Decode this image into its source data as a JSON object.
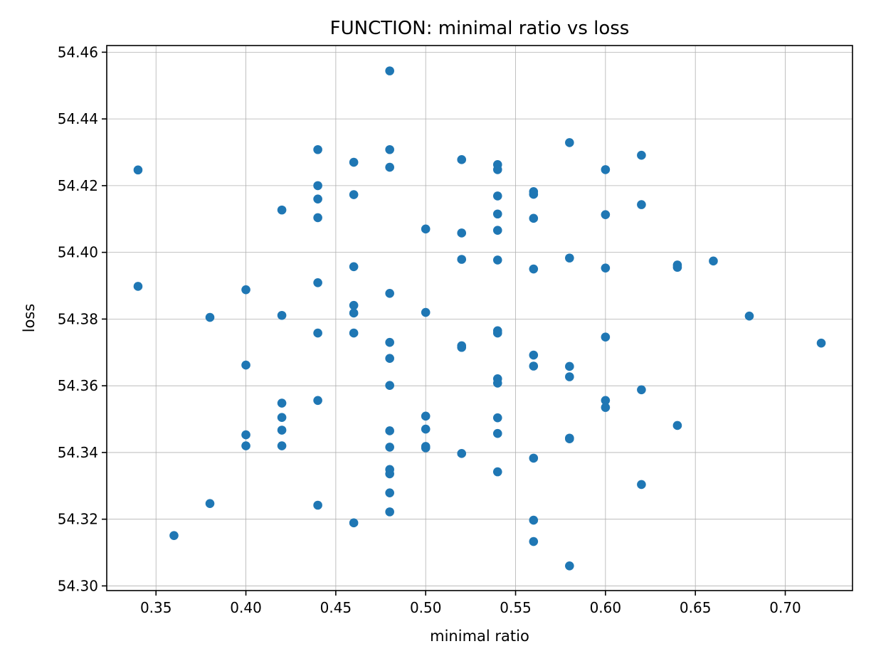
{
  "chart_data": {
    "type": "scatter",
    "title": "FUNCTION: minimal ratio vs loss",
    "xlabel": "minimal ratio",
    "ylabel": "loss",
    "xlim": [
      0.3226,
      0.7374
    ],
    "ylim": [
      54.2986,
      54.462
    ],
    "xticks": [
      "0.35",
      "0.40",
      "0.45",
      "0.50",
      "0.55",
      "0.60",
      "0.65",
      "0.70"
    ],
    "yticks": [
      "54.30",
      "54.32",
      "54.34",
      "54.36",
      "54.38",
      "54.40",
      "54.42",
      "54.44",
      "54.46"
    ],
    "grid": true,
    "marker_color": "#1f77b4",
    "points": [
      [
        0.34,
        54.4247
      ],
      [
        0.34,
        54.3898
      ],
      [
        0.36,
        54.3151
      ],
      [
        0.38,
        54.3805
      ],
      [
        0.38,
        54.3247
      ],
      [
        0.4,
        54.3888
      ],
      [
        0.4,
        54.3662
      ],
      [
        0.4,
        54.3453
      ],
      [
        0.4,
        54.342
      ],
      [
        0.42,
        54.4127
      ],
      [
        0.42,
        54.3811
      ],
      [
        0.42,
        54.3548
      ],
      [
        0.42,
        54.3505
      ],
      [
        0.42,
        54.3467
      ],
      [
        0.42,
        54.342
      ],
      [
        0.44,
        54.4308
      ],
      [
        0.44,
        54.42
      ],
      [
        0.44,
        54.416
      ],
      [
        0.44,
        54.4104
      ],
      [
        0.44,
        54.3909
      ],
      [
        0.44,
        54.3758
      ],
      [
        0.44,
        54.3556
      ],
      [
        0.44,
        54.3242
      ],
      [
        0.46,
        54.427
      ],
      [
        0.46,
        54.4173
      ],
      [
        0.46,
        54.3957
      ],
      [
        0.46,
        54.3841
      ],
      [
        0.46,
        54.3818
      ],
      [
        0.46,
        54.3758
      ],
      [
        0.46,
        54.3189
      ],
      [
        0.48,
        54.4544
      ],
      [
        0.48,
        54.4308
      ],
      [
        0.48,
        54.4255
      ],
      [
        0.48,
        54.3877
      ],
      [
        0.48,
        54.373
      ],
      [
        0.48,
        54.3682
      ],
      [
        0.48,
        54.3601
      ],
      [
        0.48,
        54.3465
      ],
      [
        0.48,
        54.3416
      ],
      [
        0.48,
        54.3349
      ],
      [
        0.48,
        54.3336
      ],
      [
        0.48,
        54.3279
      ],
      [
        0.48,
        54.3222
      ],
      [
        0.5,
        54.407
      ],
      [
        0.5,
        54.382
      ],
      [
        0.5,
        54.3509
      ],
      [
        0.5,
        54.347
      ],
      [
        0.5,
        54.3418
      ],
      [
        0.5,
        54.3414
      ],
      [
        0.52,
        54.4278
      ],
      [
        0.52,
        54.4058
      ],
      [
        0.52,
        54.3979
      ],
      [
        0.52,
        54.372
      ],
      [
        0.52,
        54.3715
      ],
      [
        0.52,
        54.3397
      ],
      [
        0.54,
        54.4263
      ],
      [
        0.54,
        54.4248
      ],
      [
        0.54,
        54.4169
      ],
      [
        0.54,
        54.4115
      ],
      [
        0.54,
        54.4066
      ],
      [
        0.54,
        54.3977
      ],
      [
        0.54,
        54.3765
      ],
      [
        0.54,
        54.3758
      ],
      [
        0.54,
        54.3621
      ],
      [
        0.54,
        54.3608
      ],
      [
        0.54,
        54.3504
      ],
      [
        0.54,
        54.3457
      ],
      [
        0.54,
        54.3342
      ],
      [
        0.56,
        54.4182
      ],
      [
        0.56,
        54.4174
      ],
      [
        0.56,
        54.4102
      ],
      [
        0.56,
        54.395
      ],
      [
        0.56,
        54.3692
      ],
      [
        0.56,
        54.3659
      ],
      [
        0.56,
        54.3383
      ],
      [
        0.56,
        54.3197
      ],
      [
        0.56,
        54.3133
      ],
      [
        0.58,
        54.4329
      ],
      [
        0.58,
        54.3983
      ],
      [
        0.58,
        54.3658
      ],
      [
        0.58,
        54.3627
      ],
      [
        0.58,
        54.3443
      ],
      [
        0.58,
        54.3441
      ],
      [
        0.58,
        54.306
      ],
      [
        0.6,
        54.4248
      ],
      [
        0.6,
        54.4113
      ],
      [
        0.6,
        54.3953
      ],
      [
        0.6,
        54.3746
      ],
      [
        0.6,
        54.3556
      ],
      [
        0.6,
        54.3535
      ],
      [
        0.62,
        54.4291
      ],
      [
        0.62,
        54.4143
      ],
      [
        0.62,
        54.3588
      ],
      [
        0.62,
        54.3304
      ],
      [
        0.64,
        54.3962
      ],
      [
        0.64,
        54.3955
      ],
      [
        0.64,
        54.3481
      ],
      [
        0.66,
        54.3974
      ],
      [
        0.68,
        54.3809
      ],
      [
        0.72,
        54.3728
      ]
    ]
  }
}
